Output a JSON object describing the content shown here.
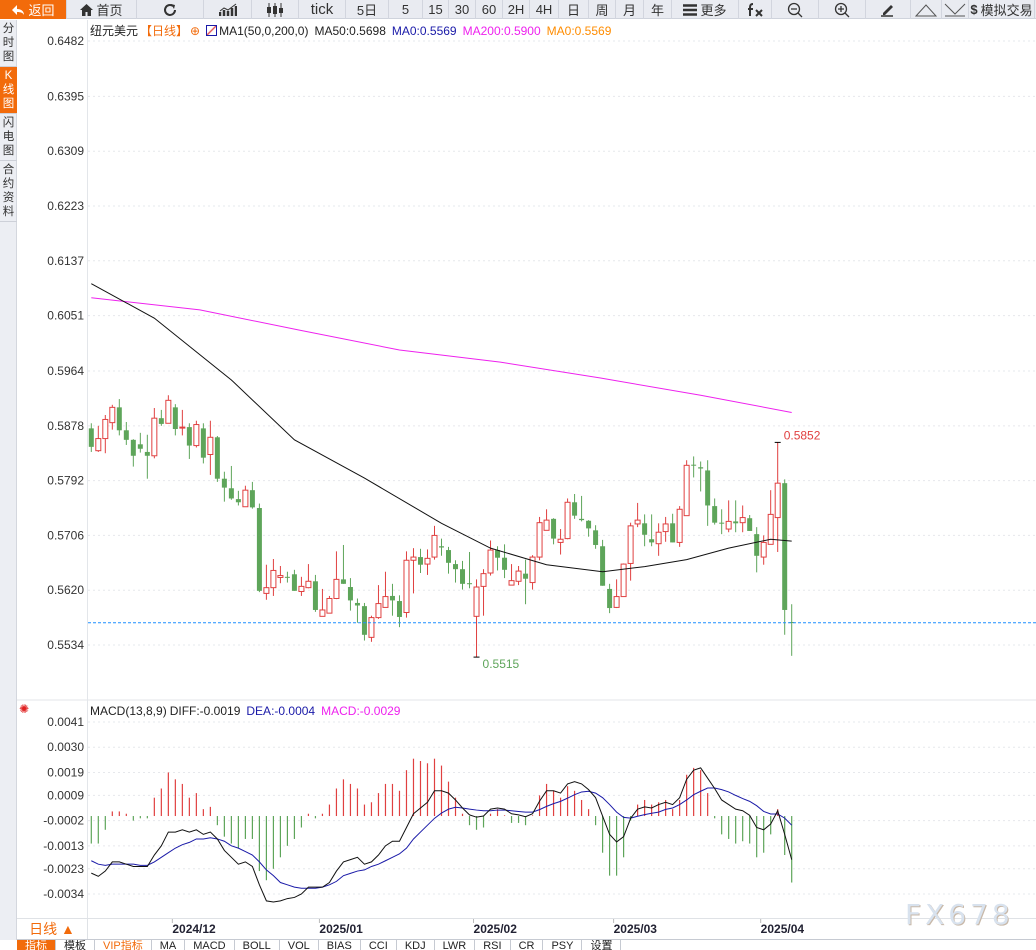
{
  "toolbar": {
    "buttons": [
      {
        "label": "返回",
        "icon": "back-arrow-icon"
      },
      {
        "label": "首页",
        "icon": "home-icon"
      },
      {
        "label": "",
        "icon": "refresh-icon"
      },
      {
        "label": "",
        "icon": "line-chart-icon"
      },
      {
        "label": "",
        "icon": "candlestick-icon"
      },
      {
        "label": "tick",
        "icon": ""
      },
      {
        "label": "5日",
        "icon": ""
      },
      {
        "label": "5",
        "icon": ""
      },
      {
        "label": "15",
        "icon": ""
      },
      {
        "label": "30",
        "icon": ""
      },
      {
        "label": "60",
        "icon": ""
      },
      {
        "label": "2H",
        "icon": ""
      },
      {
        "label": "4H",
        "icon": ""
      },
      {
        "label": "日",
        "icon": ""
      },
      {
        "label": "周",
        "icon": ""
      },
      {
        "label": "月",
        "icon": ""
      },
      {
        "label": "年",
        "icon": ""
      },
      {
        "label": "更多",
        "icon": "menu-icon"
      },
      {
        "label": "",
        "icon": "fx-icon"
      },
      {
        "label": "",
        "icon": "zoom-out-icon"
      },
      {
        "label": "",
        "icon": "zoom-in-icon"
      },
      {
        "label": "",
        "icon": "pen-icon"
      },
      {
        "label": "",
        "icon": "triangle-up-icon"
      },
      {
        "label": "",
        "icon": "triangle-down-icon"
      },
      {
        "label": "模拟交易",
        "icon": "dollar-icon"
      }
    ]
  },
  "sidebar": {
    "tabs": [
      {
        "label": "分时图",
        "active": false
      },
      {
        "label": "K线图",
        "active": true
      },
      {
        "label": "闪电图",
        "active": false
      },
      {
        "label": "合约资料",
        "active": false
      }
    ]
  },
  "legend": {
    "symbol": "纽元美元",
    "period": "【日线】",
    "ma_name": "MA1(50,0,200,0)",
    "ma50": "MA50:0.5698",
    "ma0a": "MA0:0.5569",
    "ma200": "MA200:0.5900",
    "ma0b": "MA0:0.5569"
  },
  "macd_legend": {
    "name": "MACD(13,8,9)",
    "diff": "DIFF:-0.0019",
    "dea": "DEA:-0.0004",
    "macd": "MACD:-0.0029"
  },
  "colors": {
    "up": "#e04040",
    "down": "#5ea55a",
    "ma50": "#111111",
    "ma200": "#ee22ee",
    "dea": "#1a1aa8",
    "diff": "#111111",
    "current": "#1e8fff",
    "accent": "#f26b0b"
  },
  "period_selector": "日线 ▲",
  "bottom_tabs": [
    "指标",
    "模板",
    "VIP指标",
    "MA",
    "MACD",
    "BOLL",
    "VOL",
    "BIAS",
    "CCI",
    "KDJ",
    "LWR",
    "RSI",
    "CR",
    "PSY",
    "设置"
  ],
  "watermark": "FX678",
  "chart_data": {
    "type": "candlestick",
    "price_ticks": [
      "0.6482",
      "0.6395",
      "0.6309",
      "0.6223",
      "0.6137",
      "0.6051",
      "0.5964",
      "0.5878",
      "0.5792",
      "0.5706",
      "0.5620",
      "0.5534"
    ],
    "ylim": [
      0.5534,
      0.6482
    ],
    "current_price": 0.5569,
    "date_labels": [
      {
        "label": "2024/12",
        "bar": 12
      },
      {
        "label": "2025/01",
        "bar": 33
      },
      {
        "label": "2025/02",
        "bar": 55
      },
      {
        "label": "2025/03",
        "bar": 75
      },
      {
        "label": "2025/04",
        "bar": 96
      }
    ],
    "annotations": [
      {
        "label": "0.5852",
        "bar": 98,
        "type": "high"
      },
      {
        "label": "0.5515",
        "bar": 55,
        "type": "low"
      }
    ],
    "candles_ohlc": [
      [
        0.5874,
        0.5882,
        0.5837,
        0.5845
      ],
      [
        0.5839,
        0.5878,
        0.5837,
        0.5858
      ],
      [
        0.5858,
        0.5895,
        0.5835,
        0.5888
      ],
      [
        0.5883,
        0.5911,
        0.5872,
        0.5907
      ],
      [
        0.5907,
        0.592,
        0.5863,
        0.5871
      ],
      [
        0.5871,
        0.5884,
        0.5848,
        0.5856
      ],
      [
        0.5856,
        0.5857,
        0.5814,
        0.5831
      ],
      [
        0.5849,
        0.5867,
        0.5836,
        0.5842
      ],
      [
        0.5837,
        0.5864,
        0.5795,
        0.5831
      ],
      [
        0.5831,
        0.5906,
        0.5827,
        0.589
      ],
      [
        0.589,
        0.5903,
        0.5878,
        0.5881
      ],
      [
        0.5882,
        0.5926,
        0.5882,
        0.5918
      ],
      [
        0.5907,
        0.5912,
        0.5863,
        0.5873
      ],
      [
        0.5875,
        0.5903,
        0.5863,
        0.5876
      ],
      [
        0.5876,
        0.5882,
        0.5826,
        0.5847
      ],
      [
        0.5847,
        0.5886,
        0.5844,
        0.588
      ],
      [
        0.5874,
        0.5882,
        0.5819,
        0.5828
      ],
      [
        0.5833,
        0.5886,
        0.5801,
        0.586
      ],
      [
        0.586,
        0.5862,
        0.579,
        0.5795
      ],
      [
        0.5795,
        0.5806,
        0.5759,
        0.5781
      ],
      [
        0.578,
        0.5815,
        0.5762,
        0.5764
      ],
      [
        0.5763,
        0.5776,
        0.5753,
        0.5758
      ],
      [
        0.5751,
        0.5784,
        0.5751,
        0.5777
      ],
      [
        0.5777,
        0.579,
        0.5748,
        0.575
      ],
      [
        0.5749,
        0.5756,
        0.5617,
        0.5619
      ],
      [
        0.5615,
        0.566,
        0.5605,
        0.5624
      ],
      [
        0.5624,
        0.5669,
        0.5611,
        0.5651
      ],
      [
        0.564,
        0.5658,
        0.5631,
        0.5643
      ],
      [
        0.5641,
        0.5649,
        0.5632,
        0.564
      ],
      [
        0.5645,
        0.5652,
        0.5619,
        0.5619
      ],
      [
        0.5618,
        0.5641,
        0.5611,
        0.5626
      ],
      [
        0.5624,
        0.5661,
        0.5623,
        0.5634
      ],
      [
        0.5634,
        0.5644,
        0.5586,
        0.5589
      ],
      [
        0.5579,
        0.5622,
        0.5579,
        0.5589
      ],
      [
        0.5584,
        0.5611,
        0.5584,
        0.5607
      ],
      [
        0.5607,
        0.5681,
        0.5606,
        0.5637
      ],
      [
        0.5637,
        0.5691,
        0.563,
        0.563
      ],
      [
        0.5625,
        0.5639,
        0.5588,
        0.5604
      ],
      [
        0.56,
        0.5607,
        0.5569,
        0.5596
      ],
      [
        0.5595,
        0.56,
        0.5541,
        0.555
      ],
      [
        0.5546,
        0.558,
        0.5539,
        0.5577
      ],
      [
        0.5577,
        0.5628,
        0.5575,
        0.5599
      ],
      [
        0.5593,
        0.5649,
        0.5593,
        0.561
      ],
      [
        0.5611,
        0.563,
        0.558,
        0.5604
      ],
      [
        0.5603,
        0.5612,
        0.5562,
        0.5578
      ],
      [
        0.5585,
        0.5681,
        0.5577,
        0.5667
      ],
      [
        0.5667,
        0.5686,
        0.5615,
        0.5672
      ],
      [
        0.5672,
        0.5685,
        0.5647,
        0.566
      ],
      [
        0.5661,
        0.5684,
        0.5644,
        0.567
      ],
      [
        0.5672,
        0.5721,
        0.5668,
        0.5706
      ],
      [
        0.5689,
        0.5701,
        0.5674,
        0.5687
      ],
      [
        0.5683,
        0.5688,
        0.5646,
        0.5663
      ],
      [
        0.5661,
        0.5667,
        0.5632,
        0.5653
      ],
      [
        0.5653,
        0.5666,
        0.5621,
        0.563
      ],
      [
        0.5631,
        0.568,
        0.5623,
        0.563
      ],
      [
        0.5579,
        0.5637,
        0.5515,
        0.5625
      ],
      [
        0.5626,
        0.5653,
        0.558,
        0.5646
      ],
      [
        0.5647,
        0.5698,
        0.5643,
        0.5683
      ],
      [
        0.5683,
        0.5689,
        0.5651,
        0.5671
      ],
      [
        0.5671,
        0.5692,
        0.5639,
        0.5652
      ],
      [
        0.5628,
        0.5661,
        0.5628,
        0.5635
      ],
      [
        0.5634,
        0.5658,
        0.5628,
        0.565
      ],
      [
        0.5646,
        0.5668,
        0.5598,
        0.5638
      ],
      [
        0.5632,
        0.5675,
        0.5621,
        0.5672
      ],
      [
        0.5672,
        0.5735,
        0.5667,
        0.5726
      ],
      [
        0.5714,
        0.5747,
        0.5714,
        0.573
      ],
      [
        0.5732,
        0.5733,
        0.5692,
        0.5701
      ],
      [
        0.5695,
        0.5716,
        0.5676,
        0.57
      ],
      [
        0.5701,
        0.5764,
        0.57,
        0.5758
      ],
      [
        0.5758,
        0.5771,
        0.5732,
        0.5737
      ],
      [
        0.5732,
        0.5768,
        0.5728,
        0.573
      ],
      [
        0.5729,
        0.573,
        0.5704,
        0.5717
      ],
      [
        0.5714,
        0.5722,
        0.5685,
        0.5691
      ],
      [
        0.5689,
        0.5699,
        0.5627,
        0.5627
      ],
      [
        0.5622,
        0.563,
        0.5584,
        0.5592
      ],
      [
        0.5593,
        0.5637,
        0.5592,
        0.561
      ],
      [
        0.561,
        0.5662,
        0.561,
        0.5661
      ],
      [
        0.5662,
        0.5726,
        0.5635,
        0.5721
      ],
      [
        0.5724,
        0.5757,
        0.5719,
        0.573
      ],
      [
        0.5725,
        0.5739,
        0.5689,
        0.5707
      ],
      [
        0.57,
        0.5739,
        0.5689,
        0.5695
      ],
      [
        0.5693,
        0.5725,
        0.5674,
        0.5711
      ],
      [
        0.5712,
        0.5735,
        0.5696,
        0.5724
      ],
      [
        0.5725,
        0.574,
        0.5695,
        0.5695
      ],
      [
        0.5695,
        0.5752,
        0.5688,
        0.5747
      ],
      [
        0.5737,
        0.5824,
        0.5737,
        0.5816
      ],
      [
        0.5817,
        0.583,
        0.5797,
        0.5816
      ],
      [
        0.5813,
        0.5822,
        0.5775,
        0.5811
      ],
      [
        0.5808,
        0.5824,
        0.5721,
        0.5753
      ],
      [
        0.5752,
        0.5764,
        0.5723,
        0.5726
      ],
      [
        0.5726,
        0.5747,
        0.5708,
        0.5725
      ],
      [
        0.5716,
        0.5761,
        0.5711,
        0.5728
      ],
      [
        0.5728,
        0.5761,
        0.5711,
        0.5725
      ],
      [
        0.5726,
        0.5753,
        0.5711,
        0.5734
      ],
      [
        0.5733,
        0.5738,
        0.5713,
        0.5713
      ],
      [
        0.5708,
        0.5719,
        0.5648,
        0.5674
      ],
      [
        0.5672,
        0.5706,
        0.566,
        0.5695
      ],
      [
        0.5692,
        0.5777,
        0.5692,
        0.5739
      ],
      [
        0.5734,
        0.5852,
        0.568,
        0.5788
      ],
      [
        0.5788,
        0.5794,
        0.555,
        0.5589
      ],
      [
        0.557,
        0.5598,
        0.5517,
        0.5569
      ]
    ],
    "ma50": [
      [
        0,
        0.6101
      ],
      [
        9,
        0.6047
      ],
      [
        20,
        0.595
      ],
      [
        29,
        0.5856
      ],
      [
        39,
        0.5796
      ],
      [
        50,
        0.5725
      ],
      [
        57,
        0.5686
      ],
      [
        65,
        0.566
      ],
      [
        73,
        0.5649
      ],
      [
        79,
        0.5657
      ],
      [
        85,
        0.5668
      ],
      [
        91,
        0.5686
      ],
      [
        97,
        0.57
      ],
      [
        100,
        0.5697
      ]
    ],
    "ma200": [
      [
        0,
        0.6079
      ],
      [
        15.5,
        0.606
      ],
      [
        29.8,
        0.6028
      ],
      [
        44,
        0.5997
      ],
      [
        58.4,
        0.5978
      ],
      [
        72.7,
        0.5953
      ],
      [
        87,
        0.5926
      ],
      [
        100,
        0.5899
      ]
    ],
    "macd": {
      "ticks": [
        "0.0041",
        "0.0030",
        "0.0019",
        "0.0009",
        "-0.0002",
        "-0.0013",
        "-0.0023",
        "-0.0034"
      ],
      "ylim": [
        -0.0034,
        0.0041
      ],
      "hist": [
        -0.0012,
        -0.0012,
        -0.0006,
        0.0002,
        0.0002,
        0.0001,
        -0.0002,
        -0.0001,
        -0.0001,
        0.0008,
        0.0012,
        0.0019,
        0.0016,
        0.0014,
        0.0008,
        0.001,
        0.0003,
        0.0004,
        -0.0004,
        -0.0009,
        -0.0012,
        -0.0014,
        -0.001,
        -0.001,
        -0.0024,
        -0.0028,
        -0.0023,
        -0.0018,
        -0.0013,
        -0.001,
        -0.0005,
        0.0001,
        -0.0001,
        0.0001,
        0.0005,
        0.0012,
        0.0016,
        0.0014,
        0.0012,
        0.0005,
        0.0006,
        0.001,
        0.0014,
        0.0014,
        0.0011,
        0.002,
        0.0025,
        0.0024,
        0.0023,
        0.0025,
        0.0022,
        0.0015,
        0.0008,
        0.0001,
        -0.0004,
        -0.0006,
        -0.0005,
        0.0001,
        0.0003,
        3e-05,
        -0.0003,
        -0.0003,
        -0.0004,
        3e-05,
        0.0009,
        0.0014,
        0.0011,
        0.0008,
        0.0013,
        0.0011,
        0.0007,
        0.0003,
        -0.0004,
        -0.0016,
        -0.0026,
        -0.0026,
        -0.0018,
        -0.0002,
        0.0005,
        0.0007,
        0.0005,
        0.0006,
        0.0007,
        0.0003,
        0.0007,
        0.0018,
        0.0021,
        0.002,
        0.001,
        -0.0001,
        -0.0008,
        -0.001,
        -0.0012,
        -0.0011,
        -0.0012,
        -0.0018,
        -0.0016,
        -0.0008,
        0.0003,
        -0.0017,
        -0.0029
      ],
      "diff": [
        -0.00249,
        -0.00263,
        -0.0024,
        -0.002,
        -0.002,
        -0.0021,
        -0.0022,
        -0.0022,
        -0.0022,
        -0.0017,
        -0.0013,
        -0.0007,
        -0.0007,
        -0.0006,
        -0.0007,
        -0.0006,
        -0.0008,
        -0.0007,
        -0.001,
        -0.0015,
        -0.0018,
        -0.0021,
        -0.002,
        -0.0022,
        -0.003,
        -0.0037,
        -0.00375,
        -0.0037,
        -0.0036,
        -0.00355,
        -0.0034,
        -0.0031,
        -0.0031,
        -0.0031,
        -0.0029,
        -0.0024,
        -0.002,
        -0.0019,
        -0.0018,
        -0.0021,
        -0.002,
        -0.0017,
        -0.0013,
        -0.0011,
        -0.0011,
        -0.0005,
        0.0001,
        0.00035,
        0.0006,
        0.0011,
        0.0011,
        0.001,
        0.0007,
        0.00035,
        5e-05,
        -5e-05,
        0,
        0.0003,
        0.00035,
        0.0003,
        0.0001,
        5e-05,
        -3e-05,
        0.0001,
        0.00065,
        0.0011,
        0.0011,
        0.001,
        0.0014,
        0.0015,
        0.0014,
        0.00115,
        0.0008,
        0,
        -0.0008,
        -0.00113,
        -0.0009,
        -0.0001,
        0.0003,
        0.0004,
        0.00035,
        0.0005,
        0.0006,
        0.0005,
        0.0008,
        0.0016,
        0.002,
        0.0021,
        0.00165,
        0.0012,
        0.0007,
        0.0005,
        0.0003,
        0.00023,
        3e-05,
        -0.0005,
        -0.0006,
        -0.00035,
        0.00023,
        -0.0008,
        -0.0019
      ],
      "dea": [
        -0.00195,
        -0.0021,
        -0.00215,
        -0.0021,
        -0.0021,
        -0.0021,
        -0.0021,
        -0.00215,
        -0.00215,
        -0.002,
        -0.0018,
        -0.0016,
        -0.0014,
        -0.00125,
        -0.00115,
        -0.001,
        -0.001,
        -0.00095,
        -0.001,
        -0.0011,
        -0.0013,
        -0.0014,
        -0.00155,
        -0.0017,
        -0.002,
        -0.00235,
        -0.0026,
        -0.0029,
        -0.003,
        -0.0031,
        -0.00315,
        -0.00315,
        -0.00315,
        -0.0031,
        -0.003,
        -0.00285,
        -0.0026,
        -0.0025,
        -0.0024,
        -0.00235,
        -0.0022,
        -0.0021,
        -0.00195,
        -0.0018,
        -0.00165,
        -0.0014,
        -0.001,
        -0.0007,
        -0.0004,
        -0.0001,
        0.00013,
        0.0003,
        0.00038,
        0.00035,
        0.0003,
        0.00026,
        0.00023,
        0.00023,
        0.00026,
        0.00026,
        0.00023,
        0.0002,
        0.00017,
        0.00017,
        0.00028,
        0.00042,
        0.00054,
        0.00064,
        0.00078,
        0.00093,
        0.00105,
        0.00108,
        0.001,
        0.0008,
        0.0005,
        0.00017,
        -6e-05,
        -9e-05,
        -1e-05,
        6e-05,
        0.00012,
        0.00017,
        0.00029,
        0.00035,
        0.0005,
        0.0007,
        0.00093,
        0.00108,
        0.00122,
        0.00122,
        0.00115,
        0.00105,
        0.0009,
        0.00076,
        0.00064,
        0.00045,
        0.0002,
        9e-05,
        9e-05,
        -9e-05,
        -0.0004
      ]
    }
  }
}
